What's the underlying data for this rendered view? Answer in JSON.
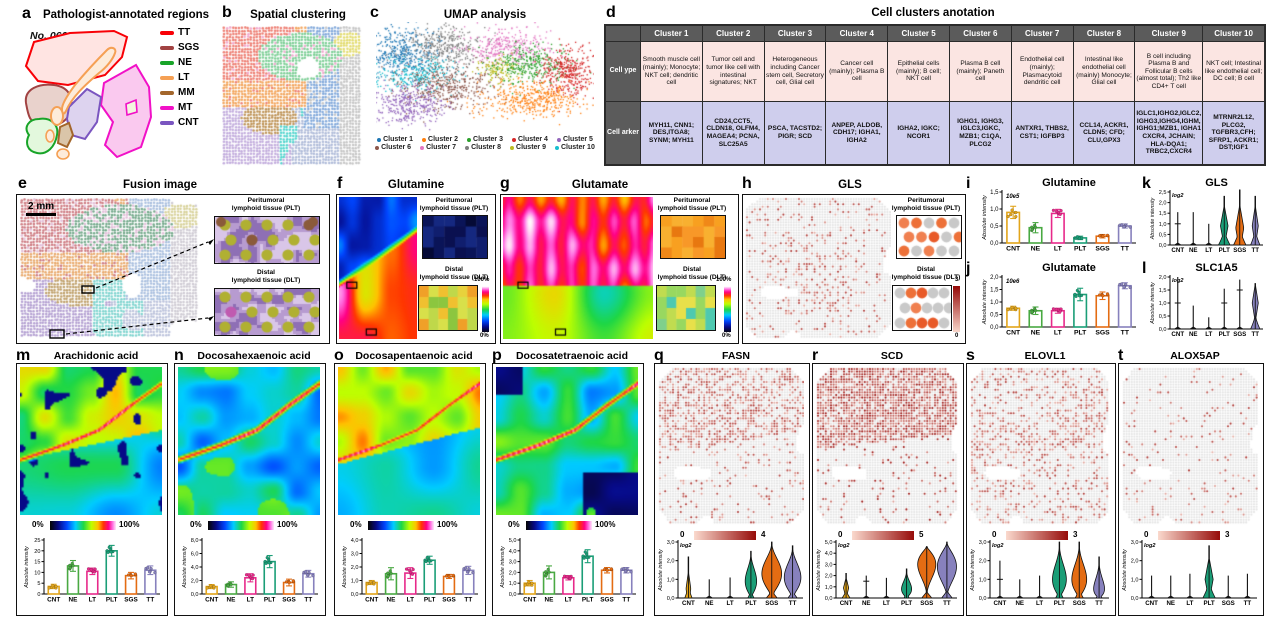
{
  "palette": {
    "CNT": "#E2A51B",
    "NE": "#49A942",
    "LT": "#E7298A",
    "PLT": "#1B9E77",
    "SGS": "#E46C13",
    "TT": "#8781BD"
  },
  "panels": {
    "a": {
      "label": "a",
      "title": "Pathologist-annotated regions",
      "sample_id": "No. 0602",
      "regions": [
        {
          "label": "TT",
          "color": "#F80006"
        },
        {
          "label": "SGS",
          "color": "#A14242"
        },
        {
          "label": "NE",
          "color": "#18A428"
        },
        {
          "label": "LT",
          "color": "#F5A054"
        },
        {
          "label": "MM",
          "color": "#A3662B"
        },
        {
          "label": "MT",
          "color": "#F111C7"
        },
        {
          "label": "CNT",
          "color": "#7A55C0"
        }
      ]
    },
    "b": {
      "label": "b",
      "title": "Spatial clustering"
    },
    "c": {
      "label": "c",
      "title": "UMAP analysis",
      "clusters": [
        {
          "label": "Cluster 1",
          "color": "#1f77b4"
        },
        {
          "label": "Cluster 2",
          "color": "#ff7f0e"
        },
        {
          "label": "Cluster 3",
          "color": "#2ca02c"
        },
        {
          "label": "Cluster 4",
          "color": "#d62728"
        },
        {
          "label": "Cluster 5",
          "color": "#9467bd"
        },
        {
          "label": "Cluster 6",
          "color": "#8c564b"
        },
        {
          "label": "Cluster 7",
          "color": "#e377c2"
        },
        {
          "label": "Cluster 8",
          "color": "#7f7f7f"
        },
        {
          "label": "Cluster 9",
          "color": "#bcbd22"
        },
        {
          "label": "Cluster 10",
          "color": "#17becf"
        }
      ]
    },
    "d": {
      "label": "d",
      "title": "Cell clusters anotation",
      "row_headers": [
        "Cell ype",
        "Cell arker"
      ],
      "clusters": [
        {
          "header": "Cluster 1",
          "cell_type": "Smooth muscle cell (mainly); Monocyte; NKT cell; dendritic cell",
          "cell_marker": "MYH11, CNN1; DES,ITGA8; SYNM; MYH11"
        },
        {
          "header": "Cluster 2",
          "cell_type": "Tumor cell and tumor like cell with intestinal signatures; NKT",
          "cell_marker": "CD24,CCT5, CLDN18, OLFM4, MAGEA4; PCNA, SLC25A5"
        },
        {
          "header": "Cluster 3",
          "cell_type": "Heterogeneous including Cancer stem cell, Secretory cell, Glial cell",
          "cell_marker": "PSCA, TACSTD2; PIGR; SCD"
        },
        {
          "header": "Cluster 4",
          "cell_type": "Cancer cell (mainly); Plasma B cell",
          "cell_marker": "ANPEP, ALDOB, CDH17; IGHA1, IGHA2"
        },
        {
          "header": "Cluster 5",
          "cell_type": "Epithelial cells (mainly); B cell; NKT cell",
          "cell_marker": "IGHA2, IGKC; NCOR1"
        },
        {
          "header": "Cluster 6",
          "cell_type": "Plasma B cell (mainly); Paneth cell",
          "cell_marker": "IGHG1, IGHG3, IGLC3,IGKC, MZB1; C1QA, PLCG2"
        },
        {
          "header": "Cluster 7",
          "cell_type": "Endothelial cell (mainly); Plasmacytoid dendritic cell",
          "cell_marker": "ANTXR1, THBS2, CST1; IGFBP3"
        },
        {
          "header": "Cluster 8",
          "cell_type": "Intestinal like endothelial cell (mainly) Monocyte; Glial cell",
          "cell_marker": "CCL14, ACKR1, CLDN5; CFD; CLU,GPX3"
        },
        {
          "header": "Cluster 9",
          "cell_type": "B cell including Plasma B and Follicular B cells (almost total); Th2 like CD4+ T cell",
          "cell_marker": "IGLC1,IGHG2,IGLC2, IGHG3,IGHG4,IGHM, IGHG1;MZB1, IGHA1 CXCR4, JCHAIN; HLA-DQA1; TRBC2,CXCR4"
        },
        {
          "header": "Cluster 10",
          "cell_type": "NKT cell; Intestinal like endothelial cell; DC cell; B cell",
          "cell_marker": "MTRNR2L12, PLCG2, TGFBR3,CFH; SFRP1, ACKR1; DST;IGF1"
        }
      ]
    },
    "e": {
      "label": "e",
      "title": "Fusion image",
      "scale_bar": "2 mm",
      "inset1_line1": "Peritumoral",
      "inset1_line2": "lymphoid tissue (PLT)",
      "inset2_line1": "Distal",
      "inset2_line2": "lymphoid tissue (DLT)"
    },
    "f": {
      "label": "f",
      "title": "Glutamine",
      "inset1_line1": "Peritumoral",
      "inset1_line2": "lymphoid tissue (PLT)",
      "inset2_line1": "Distal",
      "inset2_line2": "lymphoid tissue (DLT)",
      "cb_max": "100%",
      "cb_min": "0%"
    },
    "g": {
      "label": "g",
      "title": "Glutamate",
      "inset1_line1": "Peritumoral",
      "inset1_line2": "lymphoid tissue (PLT)",
      "inset2_line1": "Distal",
      "inset2_line2": "lymphoid tissue (DLT)",
      "cb_max": "100%",
      "cb_min": "0%"
    },
    "h": {
      "label": "h",
      "title": "GLS",
      "inset1_line1": "Peritumoral",
      "inset1_line2": "lymphoid tissue (PLT)",
      "inset2_line1": "Distal",
      "inset2_line2": "lymphoid tissue (DLT)",
      "cb_max": "3",
      "cb_min": "0"
    },
    "m": {
      "label": "m",
      "title": "Arachidonic acid",
      "cb_min": "0%",
      "cb_max": "100%"
    },
    "n": {
      "label": "n",
      "title": "Docosahexaenoic acid",
      "cb_min": "0%",
      "cb_max": "100%"
    },
    "o": {
      "label": "o",
      "title": "Docosapentaenoic acid",
      "cb_min": "0%",
      "cb_max": "100%"
    },
    "p": {
      "label": "p",
      "title": "Docosatetraenoic acid",
      "cb_min": "0%",
      "cb_max": "100%"
    },
    "q": {
      "label": "q",
      "title": "FASN",
      "cb_min": "0",
      "cb_max": "4"
    },
    "r": {
      "label": "r",
      "title": "SCD",
      "cb_min": "0",
      "cb_max": "5"
    },
    "s": {
      "label": "s",
      "title": "ELOVL1",
      "cb_min": "0",
      "cb_max": "3"
    },
    "t": {
      "label": "t",
      "title": "ALOX5AP",
      "cb_min": "0",
      "cb_max": "3"
    }
  },
  "chart_data": [
    {
      "id": "i",
      "type": "bar",
      "title": "Glutamine",
      "scale_note": "10e5",
      "ylabel": "Absolute intensity",
      "categories": [
        "CNT",
        "NE",
        "LT",
        "PLT",
        "SGS",
        "TT"
      ],
      "values": [
        0.9,
        0.45,
        0.87,
        0.15,
        0.2,
        0.5
      ],
      "errors": [
        0.18,
        0.15,
        0.12,
        0.05,
        0.05,
        0.06
      ],
      "ylim": [
        0,
        1.5
      ],
      "yticks": [
        "0,0",
        "0,5",
        "1,0",
        "1,5"
      ]
    },
    {
      "id": "j",
      "type": "bar",
      "title": "Glutamate",
      "scale_note": "10e6",
      "ylabel": "Absolute intensity",
      "categories": [
        "CNT",
        "NE",
        "LT",
        "PLT",
        "SGS",
        "TT"
      ],
      "values": [
        0.75,
        0.65,
        0.65,
        1.3,
        1.25,
        1.65
      ],
      "errors": [
        0.08,
        0.15,
        0.1,
        0.25,
        0.15,
        0.12
      ],
      "ylim": [
        0,
        2
      ],
      "yticks": [
        "0,0",
        "0,5",
        "1,0",
        "1,5",
        "2,0"
      ]
    },
    {
      "id": "m",
      "type": "bar",
      "title": "Arachidonic acid",
      "ylabel": "Absolute intensity",
      "categories": [
        "CNT",
        "NE",
        "LT",
        "PLT",
        "SGS",
        "TT"
      ],
      "values": [
        3.5,
        13,
        10.5,
        20,
        8.5,
        11
      ],
      "errors": [
        1,
        2.5,
        1.5,
        2.5,
        1.5,
        2
      ],
      "ylim": [
        0,
        25
      ],
      "yticks": [
        "0",
        "5",
        "10",
        "15",
        "20",
        "25"
      ]
    },
    {
      "id": "n",
      "type": "bar",
      "title": "Docosahexaenoic acid",
      "ylabel": "Absolute intensity",
      "categories": [
        "CNT",
        "NE",
        "LT",
        "PLT",
        "SGS",
        "TT"
      ],
      "values": [
        1.1,
        1.4,
        2.4,
        4.8,
        1.7,
        3.0
      ],
      "errors": [
        0.3,
        0.4,
        0.6,
        0.9,
        0.5,
        0.5
      ],
      "ylim": [
        0,
        8
      ],
      "yticks": [
        "0,0",
        "2,0",
        "4,0",
        "6,0",
        "8,0"
      ]
    },
    {
      "id": "o",
      "type": "bar",
      "title": "Docosapentaenoic acid",
      "ylabel": "Absolute intensity",
      "categories": [
        "CNT",
        "NE",
        "LT",
        "PLT",
        "SGS",
        "TT"
      ],
      "values": [
        0.85,
        1.5,
        1.55,
        2.5,
        1.3,
        1.75
      ],
      "errors": [
        0.15,
        0.45,
        0.4,
        0.3,
        0.15,
        0.3
      ],
      "ylim": [
        0,
        4
      ],
      "yticks": [
        "0,0",
        "1,0",
        "2,0",
        "3,0",
        "4,0"
      ]
    },
    {
      "id": "p",
      "type": "bar",
      "title": "Docosatetraenoic acid",
      "ylabel": "Absolute intensity",
      "categories": [
        "CNT",
        "NE",
        "LT",
        "PLT",
        "SGS",
        "TT"
      ],
      "values": [
        1.0,
        2.0,
        1.5,
        3.5,
        2.2,
        2.2
      ],
      "errors": [
        0.25,
        0.6,
        0.2,
        0.6,
        0.25,
        0.25
      ],
      "ylim": [
        0,
        5
      ],
      "yticks": [
        "0,0",
        "1,0",
        "2,0",
        "3,0",
        "4,0",
        "5,0"
      ]
    },
    {
      "id": "k",
      "type": "violin",
      "title": "GLS",
      "scale_note": "log2",
      "ylabel": "Absolute intensity",
      "ylim": [
        0,
        2.5
      ],
      "yticks": [
        "0,0",
        "0,5",
        "1,0",
        "1,5",
        "2,0",
        "2,5"
      ],
      "items": [
        {
          "cat": "CNT",
          "kind": "line",
          "max": 1.55,
          "cross": 1.0
        },
        {
          "cat": "NE",
          "kind": "line",
          "max": 1.55
        },
        {
          "cat": "LT",
          "kind": "line",
          "max": 1.0
        },
        {
          "cat": "PLT",
          "kind": "violin",
          "shape": "spindle",
          "max": 2.3,
          "bulge": 0.9,
          "hw": 0.75
        },
        {
          "cat": "SGS",
          "kind": "violin",
          "shape": "spindle",
          "max": 2.6,
          "bulge": 0.8,
          "hw": 0.8
        },
        {
          "cat": "TT",
          "kind": "violin",
          "shape": "spindle",
          "max": 2.3,
          "bulge": 0.9,
          "hw": 0.6
        }
      ]
    },
    {
      "id": "l",
      "type": "violin",
      "title": "SLC1A5",
      "scale_note": "log2",
      "ylabel": "Absolute intensity",
      "ylim": [
        0,
        2
      ],
      "yticks": [
        "0,0",
        "0,5",
        "1,0",
        "1,5",
        "2,0"
      ],
      "items": [
        {
          "cat": "CNT",
          "kind": "line",
          "max": 2.0,
          "cross": 1.0
        },
        {
          "cat": "NE",
          "kind": "line",
          "max": 0.9
        },
        {
          "cat": "LT",
          "kind": "line",
          "max": 0.45
        },
        {
          "cat": "PLT",
          "kind": "line",
          "max": 1.55,
          "cross": 1.0
        },
        {
          "cat": "SGS",
          "kind": "line",
          "max": 1.9,
          "cross": 1.5
        },
        {
          "cat": "TT",
          "kind": "violin",
          "shape": "spindle",
          "max": 1.75,
          "bulge": 1.0,
          "hw": 0.6
        }
      ]
    },
    {
      "id": "q",
      "type": "violin",
      "title": "FASN",
      "scale_note": "log2",
      "ylabel": "Absolute intensity",
      "ylim": [
        0,
        3
      ],
      "yticks": [
        "0,0",
        "1,0",
        "2,0",
        "3,0"
      ],
      "items": [
        {
          "cat": "CNT",
          "kind": "violin",
          "shape": "spindle",
          "max": 2.2,
          "bulge": 0.5,
          "hw": 0.35
        },
        {
          "cat": "NE",
          "kind": "line",
          "max": 1.0
        },
        {
          "cat": "LT",
          "kind": "line",
          "max": 1.1
        },
        {
          "cat": "PLT",
          "kind": "violin",
          "shape": "blob",
          "max": 2.5,
          "bulge": 0.9,
          "hw": 0.55
        },
        {
          "cat": "SGS",
          "kind": "violin",
          "shape": "blob",
          "max": 3.0,
          "bulge": 1.3,
          "hw": 0.95
        },
        {
          "cat": "TT",
          "kind": "violin",
          "shape": "blob",
          "max": 2.8,
          "bulge": 1.1,
          "hw": 0.8
        }
      ]
    },
    {
      "id": "r",
      "type": "violin",
      "title": "SCD",
      "scale_note": "log2",
      "ylabel": "Absolute intensity",
      "ylim": [
        0,
        5
      ],
      "yticks": [
        "0,0",
        "1,0",
        "2,0",
        "3,0",
        "4,0",
        "5,0"
      ],
      "items": [
        {
          "cat": "CNT",
          "kind": "violin",
          "shape": "spindle",
          "max": 2.2,
          "bulge": 0.9,
          "hw": 0.4
        },
        {
          "cat": "NE",
          "kind": "line",
          "max": 2.0,
          "cross": 1.5
        },
        {
          "cat": "LT",
          "kind": "line",
          "max": 1.8
        },
        {
          "cat": "PLT",
          "kind": "violin",
          "shape": "blob",
          "max": 2.6,
          "bulge": 0.8,
          "hw": 0.5
        },
        {
          "cat": "SGS",
          "kind": "violin",
          "shape": "blob",
          "max": 4.6,
          "bulge": 3.0,
          "hw": 0.9
        },
        {
          "cat": "TT",
          "kind": "violin",
          "shape": "blob",
          "max": 5.0,
          "bulge": 2.8,
          "hw": 0.95
        }
      ]
    },
    {
      "id": "s",
      "type": "violin",
      "title": "ELOVL1",
      "scale_note": "log2",
      "ylabel": "Absolute intensity",
      "ylim": [
        0,
        3
      ],
      "yticks": [
        "0,0",
        "1,0",
        "2,0",
        "3,0"
      ],
      "items": [
        {
          "cat": "CNT",
          "kind": "line",
          "max": 2.0,
          "cross": 1.0
        },
        {
          "cat": "NE",
          "kind": "line",
          "max": 1.0
        },
        {
          "cat": "LT",
          "kind": "line",
          "max": 1.2
        },
        {
          "cat": "PLT",
          "kind": "violin",
          "shape": "blob",
          "max": 3.0,
          "bulge": 1.0,
          "hw": 0.7
        },
        {
          "cat": "SGS",
          "kind": "violin",
          "shape": "blob",
          "max": 3.0,
          "bulge": 1.0,
          "hw": 0.75
        },
        {
          "cat": "TT",
          "kind": "violin",
          "shape": "blob",
          "max": 2.2,
          "bulge": 0.5,
          "hw": 0.55
        }
      ]
    },
    {
      "id": "t",
      "type": "violin",
      "title": "ALOX5AP",
      "scale_note": "log2",
      "ylabel": "Absolute intensity",
      "ylim": [
        0,
        3
      ],
      "yticks": [
        "0,0",
        "1,0",
        "2,0",
        "3,0"
      ],
      "items": [
        {
          "cat": "CNT",
          "kind": "line",
          "max": 1.2
        },
        {
          "cat": "NE",
          "kind": "line",
          "max": 1.2
        },
        {
          "cat": "LT",
          "kind": "line",
          "max": 1.3
        },
        {
          "cat": "PLT",
          "kind": "violin",
          "shape": "spindle",
          "max": 2.8,
          "bulge": 1.0,
          "hw": 0.65
        },
        {
          "cat": "SGS",
          "kind": "line",
          "max": 1.2
        },
        {
          "cat": "TT",
          "kind": "line",
          "max": 1.3
        }
      ]
    }
  ]
}
